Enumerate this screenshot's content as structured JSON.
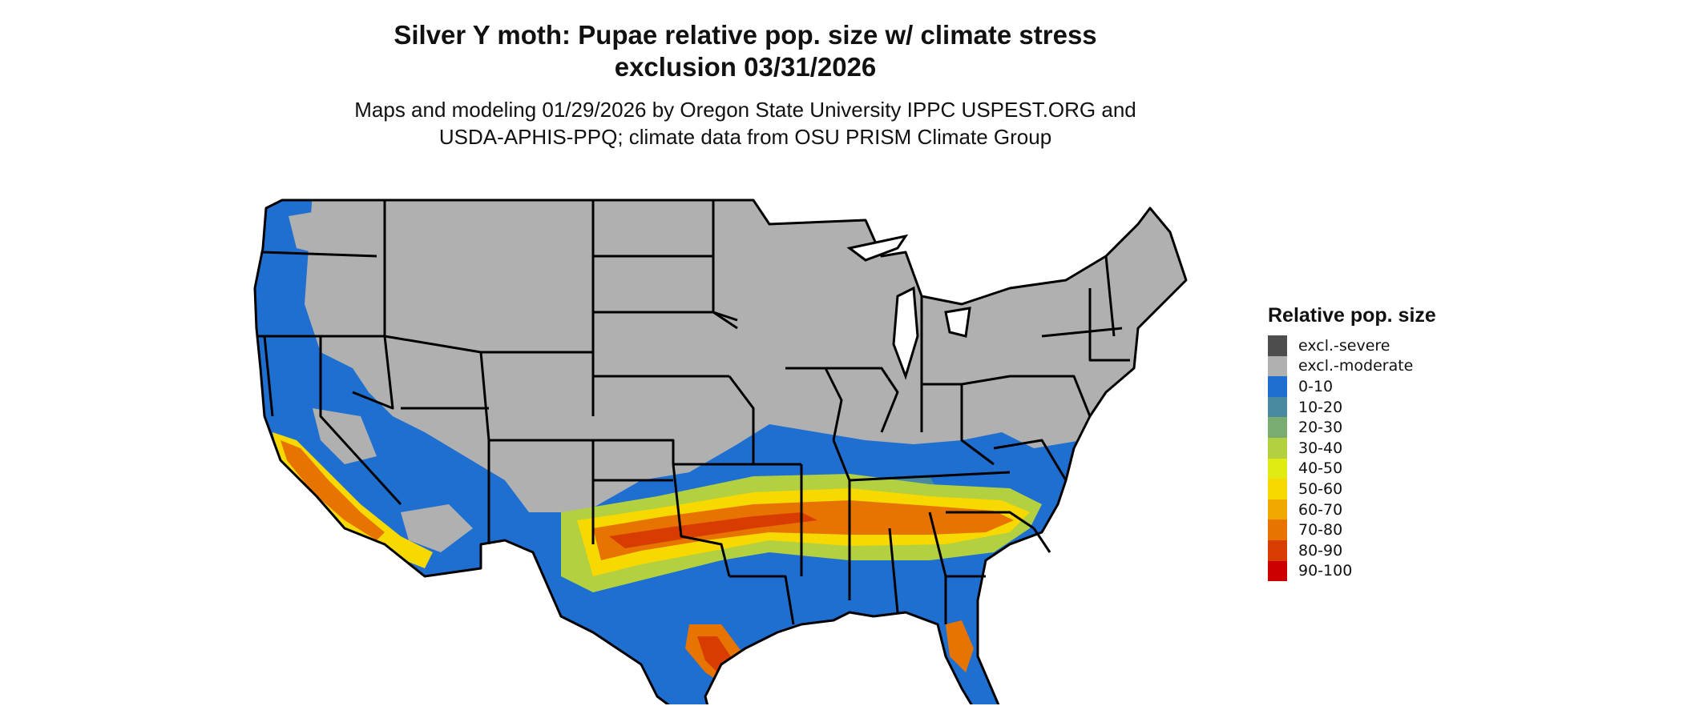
{
  "title_line1": "Silver Y moth: Pupae relative pop. size w/ climate stress",
  "title_line2": "exclusion 03/31/2026",
  "subtitle_line1": "Maps and modeling 01/29/2026 by Oregon State University IPPC USPEST.ORG and",
  "subtitle_line2": "USDA-APHIS-PPQ; climate data from OSU PRISM Climate Group",
  "legend": {
    "title": "Relative pop. size",
    "items": [
      {
        "label": "excl.-severe",
        "color": "#4d4d4d"
      },
      {
        "label": "excl.-moderate",
        "color": "#b0b0b0"
      },
      {
        "label": "0-10",
        "color": "#1f6fd0"
      },
      {
        "label": "10-20",
        "color": "#4a8aa0"
      },
      {
        "label": "20-30",
        "color": "#7aab70"
      },
      {
        "label": "30-40",
        "color": "#b2d040"
      },
      {
        "label": "40-50",
        "color": "#e2ea14"
      },
      {
        "label": "50-60",
        "color": "#f7d900"
      },
      {
        "label": "60-70",
        "color": "#efa800"
      },
      {
        "label": "70-80",
        "color": "#e77400"
      },
      {
        "label": "80-90",
        "color": "#d83c00"
      },
      {
        "label": "90-100",
        "color": "#cc0000"
      }
    ]
  },
  "colors": {
    "border": "#000000",
    "background": "#ffffff",
    "excluded_moderate": "#b0b0b0",
    "low_pop": "#1f6fd0"
  }
}
